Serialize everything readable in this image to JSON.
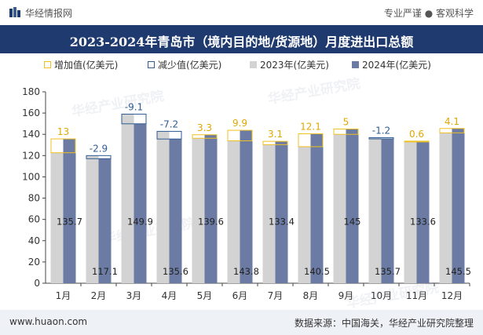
{
  "header": {
    "brand": "华经情报网",
    "slogan": "专业严谨 ● 客观科学"
  },
  "watermark": "华经产业研究院",
  "footer": {
    "website": "www.huaon.com",
    "source": "数据来源：中国海关，华经产业研究院整理"
  },
  "colors": {
    "title_bg": "#1f3a6e",
    "bar_2023": "#d3d3d3",
    "bar_2024": "#6b7ba3",
    "increase": "#f0c020",
    "decrease": "#2e5b93"
  },
  "chart_data": {
    "type": "bar",
    "title": "2023-2024年青岛市（境内目的地/货源地）月度进出口总额",
    "categories": [
      "1月",
      "2月",
      "3月",
      "4月",
      "5月",
      "6月",
      "7月",
      "8月",
      "9月",
      "10月",
      "11月",
      "12月"
    ],
    "series": [
      {
        "name": "2023年(亿美元)",
        "values": [
          122.7,
          120.0,
          159.0,
          142.8,
          136.3,
          133.9,
          130.3,
          128.4,
          140.0,
          136.9,
          133.0,
          141.4
        ]
      },
      {
        "name": "2024年(亿美元)",
        "values": [
          135.7,
          117.1,
          149.9,
          135.6,
          139.6,
          143.8,
          133.4,
          140.5,
          145,
          135.7,
          133.6,
          145.5
        ]
      }
    ],
    "changes": [
      13,
      -2.9,
      -9.1,
      -7.2,
      3.3,
      9.9,
      3.1,
      12.1,
      5,
      -1.2,
      0.6,
      4.1
    ],
    "change_legend": {
      "increase": "增加值(亿美元)",
      "decrease": "减少值(亿美元)"
    },
    "ylim": [
      0,
      180
    ],
    "yticks": [
      0,
      20,
      40,
      60,
      80,
      100,
      120,
      140,
      160,
      180
    ],
    "xlabel": "",
    "ylabel": "",
    "grid": false,
    "legend_position": "top"
  }
}
